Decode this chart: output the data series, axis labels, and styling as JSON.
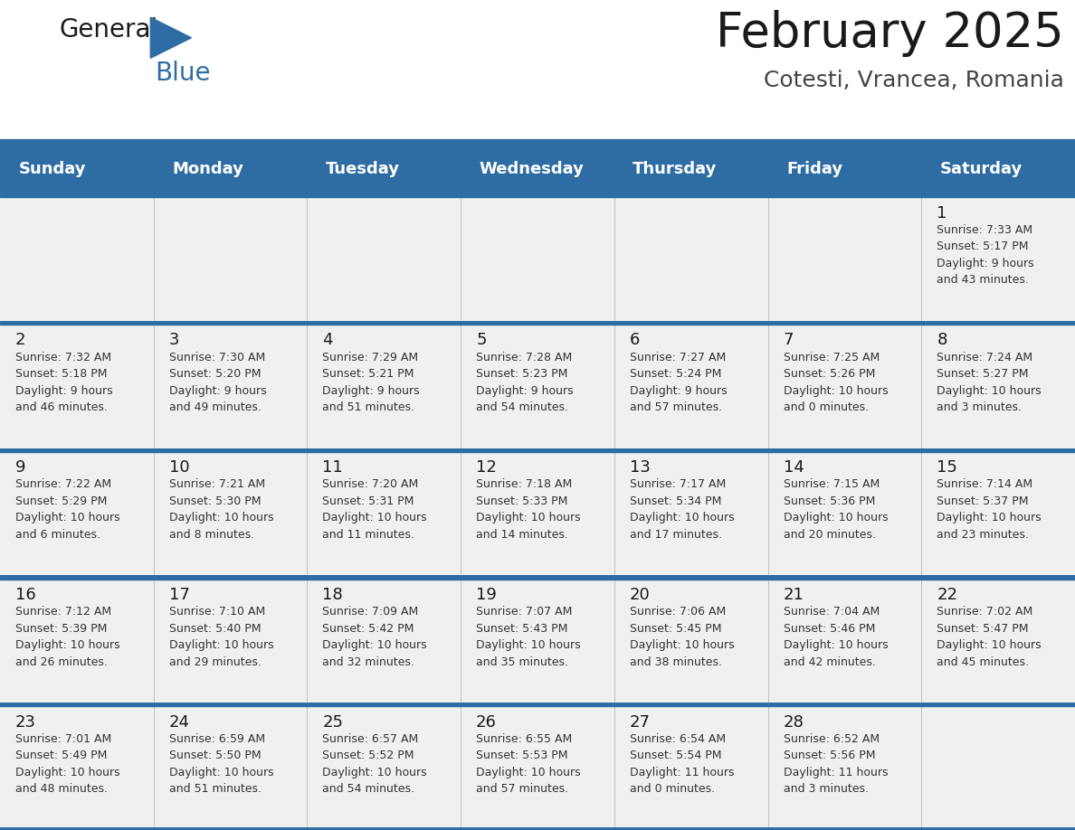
{
  "title": "February 2025",
  "subtitle": "Cotesti, Vrancea, Romania",
  "header_bg": "#2E6DA4",
  "header_text": "#FFFFFF",
  "cell_bg": "#F0F0F0",
  "border_color": "#2E6DA4",
  "inner_border_color": "#AAAAAA",
  "text_color": "#333333",
  "day_num_color": "#1a1a1a",
  "days_of_week": [
    "Sunday",
    "Monday",
    "Tuesday",
    "Wednesday",
    "Thursday",
    "Friday",
    "Saturday"
  ],
  "weeks": [
    [
      {
        "day": null,
        "text": ""
      },
      {
        "day": null,
        "text": ""
      },
      {
        "day": null,
        "text": ""
      },
      {
        "day": null,
        "text": ""
      },
      {
        "day": null,
        "text": ""
      },
      {
        "day": null,
        "text": ""
      },
      {
        "day": 1,
        "text": "Sunrise: 7:33 AM\nSunset: 5:17 PM\nDaylight: 9 hours\nand 43 minutes."
      }
    ],
    [
      {
        "day": 2,
        "text": "Sunrise: 7:32 AM\nSunset: 5:18 PM\nDaylight: 9 hours\nand 46 minutes."
      },
      {
        "day": 3,
        "text": "Sunrise: 7:30 AM\nSunset: 5:20 PM\nDaylight: 9 hours\nand 49 minutes."
      },
      {
        "day": 4,
        "text": "Sunrise: 7:29 AM\nSunset: 5:21 PM\nDaylight: 9 hours\nand 51 minutes."
      },
      {
        "day": 5,
        "text": "Sunrise: 7:28 AM\nSunset: 5:23 PM\nDaylight: 9 hours\nand 54 minutes."
      },
      {
        "day": 6,
        "text": "Sunrise: 7:27 AM\nSunset: 5:24 PM\nDaylight: 9 hours\nand 57 minutes."
      },
      {
        "day": 7,
        "text": "Sunrise: 7:25 AM\nSunset: 5:26 PM\nDaylight: 10 hours\nand 0 minutes."
      },
      {
        "day": 8,
        "text": "Sunrise: 7:24 AM\nSunset: 5:27 PM\nDaylight: 10 hours\nand 3 minutes."
      }
    ],
    [
      {
        "day": 9,
        "text": "Sunrise: 7:22 AM\nSunset: 5:29 PM\nDaylight: 10 hours\nand 6 minutes."
      },
      {
        "day": 10,
        "text": "Sunrise: 7:21 AM\nSunset: 5:30 PM\nDaylight: 10 hours\nand 8 minutes."
      },
      {
        "day": 11,
        "text": "Sunrise: 7:20 AM\nSunset: 5:31 PM\nDaylight: 10 hours\nand 11 minutes."
      },
      {
        "day": 12,
        "text": "Sunrise: 7:18 AM\nSunset: 5:33 PM\nDaylight: 10 hours\nand 14 minutes."
      },
      {
        "day": 13,
        "text": "Sunrise: 7:17 AM\nSunset: 5:34 PM\nDaylight: 10 hours\nand 17 minutes."
      },
      {
        "day": 14,
        "text": "Sunrise: 7:15 AM\nSunset: 5:36 PM\nDaylight: 10 hours\nand 20 minutes."
      },
      {
        "day": 15,
        "text": "Sunrise: 7:14 AM\nSunset: 5:37 PM\nDaylight: 10 hours\nand 23 minutes."
      }
    ],
    [
      {
        "day": 16,
        "text": "Sunrise: 7:12 AM\nSunset: 5:39 PM\nDaylight: 10 hours\nand 26 minutes."
      },
      {
        "day": 17,
        "text": "Sunrise: 7:10 AM\nSunset: 5:40 PM\nDaylight: 10 hours\nand 29 minutes."
      },
      {
        "day": 18,
        "text": "Sunrise: 7:09 AM\nSunset: 5:42 PM\nDaylight: 10 hours\nand 32 minutes."
      },
      {
        "day": 19,
        "text": "Sunrise: 7:07 AM\nSunset: 5:43 PM\nDaylight: 10 hours\nand 35 minutes."
      },
      {
        "day": 20,
        "text": "Sunrise: 7:06 AM\nSunset: 5:45 PM\nDaylight: 10 hours\nand 38 minutes."
      },
      {
        "day": 21,
        "text": "Sunrise: 7:04 AM\nSunset: 5:46 PM\nDaylight: 10 hours\nand 42 minutes."
      },
      {
        "day": 22,
        "text": "Sunrise: 7:02 AM\nSunset: 5:47 PM\nDaylight: 10 hours\nand 45 minutes."
      }
    ],
    [
      {
        "day": 23,
        "text": "Sunrise: 7:01 AM\nSunset: 5:49 PM\nDaylight: 10 hours\nand 48 minutes."
      },
      {
        "day": 24,
        "text": "Sunrise: 6:59 AM\nSunset: 5:50 PM\nDaylight: 10 hours\nand 51 minutes."
      },
      {
        "day": 25,
        "text": "Sunrise: 6:57 AM\nSunset: 5:52 PM\nDaylight: 10 hours\nand 54 minutes."
      },
      {
        "day": 26,
        "text": "Sunrise: 6:55 AM\nSunset: 5:53 PM\nDaylight: 10 hours\nand 57 minutes."
      },
      {
        "day": 27,
        "text": "Sunrise: 6:54 AM\nSunset: 5:54 PM\nDaylight: 11 hours\nand 0 minutes."
      },
      {
        "day": 28,
        "text": "Sunrise: 6:52 AM\nSunset: 5:56 PM\nDaylight: 11 hours\nand 3 minutes."
      },
      {
        "day": null,
        "text": ""
      }
    ]
  ],
  "logo_general_color": "#1a1a1a",
  "logo_blue_color": "#2E6DA4",
  "title_fontsize": 38,
  "subtitle_fontsize": 18,
  "header_fontsize": 13,
  "day_num_fontsize": 13,
  "cell_text_fontsize": 9
}
